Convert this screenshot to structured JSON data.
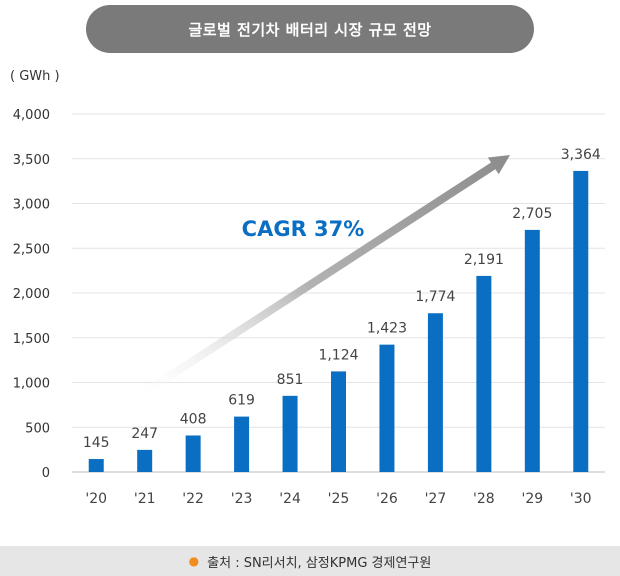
{
  "header": {
    "title": "글로벌 전기차 배터리 시장 규모 전망"
  },
  "chart_data": {
    "type": "bar",
    "title": "글로벌 전기차 배터리 시장 규모 전망",
    "ylabel": "( GWh )",
    "xlabel": "",
    "categories": [
      "'20",
      "'21",
      "'22",
      "'23",
      "'24",
      "'25",
      "'26",
      "'27",
      "'28",
      "'29",
      "'30"
    ],
    "values": [
      145,
      247,
      408,
      619,
      851,
      1124,
      1423,
      1774,
      2191,
      2705,
      3364
    ],
    "data_labels": [
      "145",
      "247",
      "408",
      "619",
      "851",
      "1,124",
      "1,423",
      "1,774",
      "2,191",
      "2,705",
      "3,364"
    ],
    "ylim": [
      0,
      4000
    ],
    "yticks": [
      0,
      500,
      1000,
      1500,
      2000,
      2500,
      3000,
      3500,
      4000
    ],
    "ytick_labels": [
      "0",
      "500",
      "1,000",
      "1,500",
      "2,000",
      "2,500",
      "3,000",
      "3,500",
      "4,000"
    ],
    "grid": true,
    "bar_color": "#0a6fc2",
    "annotation": {
      "text": "CAGR 37%",
      "color": "#0a6fc2",
      "arrow": "upward trend arrow (gray gradient)"
    }
  },
  "footer": {
    "source": "출처 : SN리서치, 삼정KPMG 경제연구원",
    "bullet_color": "#f28c1e"
  }
}
